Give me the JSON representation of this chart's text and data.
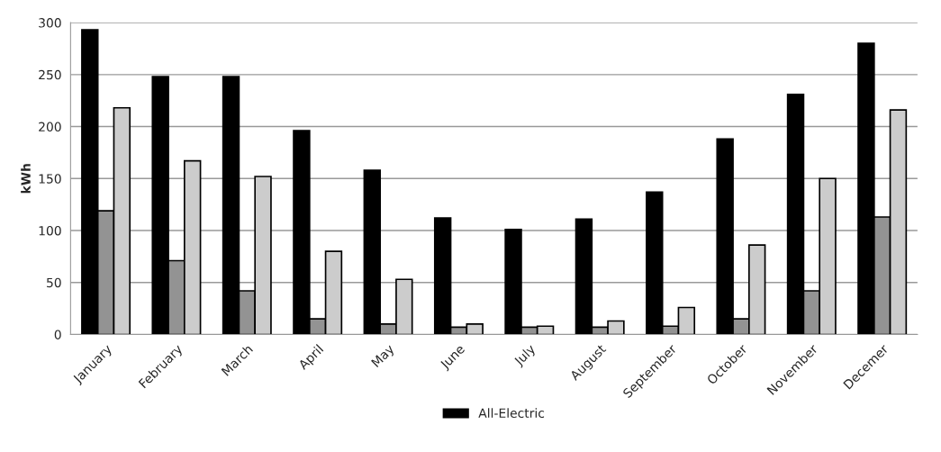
{
  "chart_data": {
    "type": "bar",
    "ylabel": "kWh",
    "categories": [
      "January",
      "February",
      "March",
      "April",
      "May",
      "June",
      "July",
      "August",
      "September",
      "October",
      "November",
      "Decemer"
    ],
    "series": [
      {
        "name": "All-Electric",
        "color": "#000000",
        "values": [
          293,
          248,
          248,
          196,
          158,
          112,
          101,
          111,
          137,
          188,
          231,
          280
        ]
      },
      {
        "color": "#939393",
        "values": [
          119,
          71,
          42,
          15,
          10,
          7,
          7,
          7,
          8,
          15,
          42,
          113
        ]
      },
      {
        "color": "#cccccc",
        "values": [
          218,
          167,
          152,
          80,
          53,
          10,
          8,
          13,
          26,
          86,
          150,
          216
        ]
      }
    ],
    "ylim": [
      0,
      300
    ],
    "yticks": [
      0,
      50,
      100,
      150,
      200,
      250,
      300
    ],
    "grid": "y",
    "legend": "bottom"
  }
}
